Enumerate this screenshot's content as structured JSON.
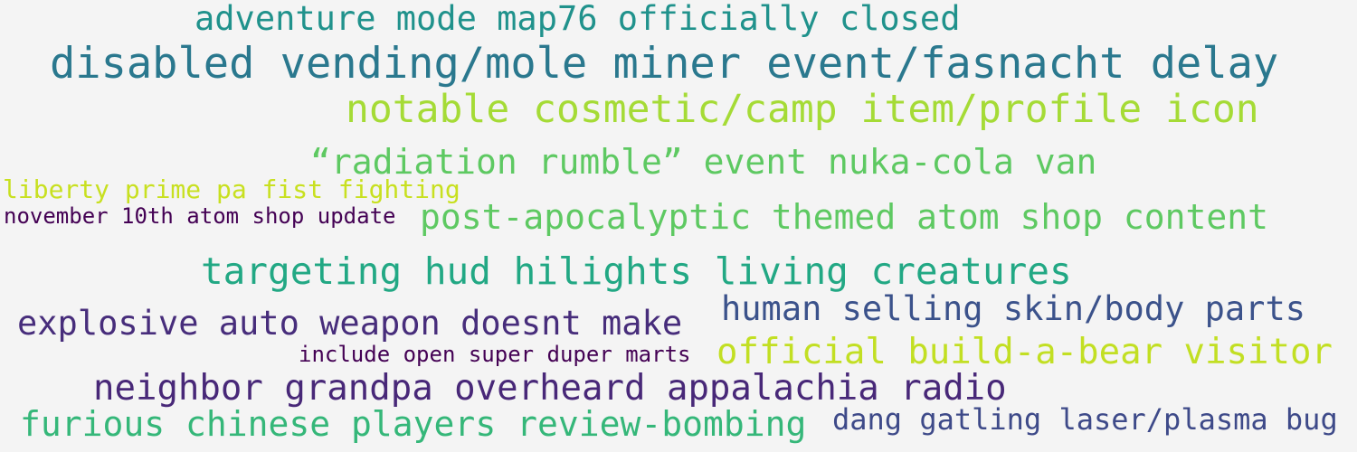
{
  "phrases": [
    {
      "text": "adventure mode map76 officially closed",
      "color": "#20928c"
    },
    {
      "text": "disabled vending/mole miner event/fasnacht delay",
      "color": "#2a788e"
    },
    {
      "text": "notable cosmetic/camp item/profile icon",
      "color": "#a5db36"
    },
    {
      "text": "“radiation rumble” event nuka-cola van",
      "color": "#5ec962"
    },
    {
      "text": "liberty prime pa fist fighting",
      "color": "#c8e020"
    },
    {
      "text": "november 10th atom shop update",
      "color": "#440154"
    },
    {
      "text": "post-apocalyptic themed atom shop content",
      "color": "#5ec962"
    },
    {
      "text": "targeting hud hilights living creatures",
      "color": "#22a884"
    },
    {
      "text": "human selling skin/body parts",
      "color": "#3b528b"
    },
    {
      "text": "explosive auto weapon doesnt make",
      "color": "#472d7b"
    },
    {
      "text": "include open super duper marts",
      "color": "#440154"
    },
    {
      "text": "official build-a-bear visitor",
      "color": "#c2df23"
    },
    {
      "text": "neighbor grandpa overheard appalachia radio",
      "color": "#482878"
    },
    {
      "text": "furious chinese players review-bombing",
      "color": "#35b779"
    },
    {
      "text": "dang gatling laser/plasma bug",
      "color": "#3e4a89"
    }
  ]
}
